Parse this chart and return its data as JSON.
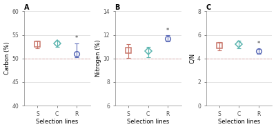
{
  "panels": [
    {
      "label": "A",
      "ylabel": "Carbon (%)",
      "ylim": [
        40,
        60
      ],
      "yticks": [
        40,
        45,
        50,
        55,
        60
      ],
      "hline": 50,
      "hline_color": "#d4a0a0",
      "categories": [
        "S",
        "C",
        "R"
      ],
      "means": [
        53.0,
        53.2,
        51.0
      ],
      "yerr_low": [
        0.8,
        0.7,
        0.8
      ],
      "yerr_high": [
        0.7,
        0.6,
        2.2
      ],
      "colors": [
        "#c8756a",
        "#5bb5af",
        "#5c6cb8"
      ],
      "markers": [
        "s",
        "D",
        "o"
      ],
      "sig": [
        false,
        false,
        true
      ]
    },
    {
      "label": "B",
      "ylabel": "Nitrogen (%)",
      "ylim": [
        6,
        14
      ],
      "yticks": [
        6,
        8,
        10,
        12,
        14
      ],
      "hline": 10,
      "hline_color": "#d4a0a0",
      "categories": [
        "S",
        "C",
        "R"
      ],
      "means": [
        10.7,
        10.6,
        11.7
      ],
      "yerr_low": [
        0.65,
        0.5,
        0.25
      ],
      "yerr_high": [
        0.5,
        0.4,
        0.25
      ],
      "colors": [
        "#c8756a",
        "#5bb5af",
        "#5c6cb8"
      ],
      "markers": [
        "s",
        "D",
        "o"
      ],
      "sig": [
        false,
        false,
        true
      ]
    },
    {
      "label": "C",
      "ylabel": "C/N",
      "ylim": [
        0,
        8
      ],
      "yticks": [
        0,
        2,
        4,
        6,
        8
      ],
      "hline": 4,
      "hline_color": "#d4a0a0",
      "categories": [
        "S",
        "C",
        "R"
      ],
      "means": [
        5.1,
        5.2,
        4.6
      ],
      "yerr_low": [
        0.4,
        0.35,
        0.2
      ],
      "yerr_high": [
        0.3,
        0.3,
        0.2
      ],
      "colors": [
        "#c8756a",
        "#5bb5af",
        "#5c6cb8"
      ],
      "markers": [
        "s",
        "D",
        "o"
      ],
      "sig": [
        false,
        false,
        true
      ]
    }
  ],
  "xlabel": "Selection lines",
  "bg_color": "#ffffff",
  "grid_color": "#d8d8d8",
  "markersize": 5.5,
  "capsize": 2,
  "linewidth": 0.8
}
